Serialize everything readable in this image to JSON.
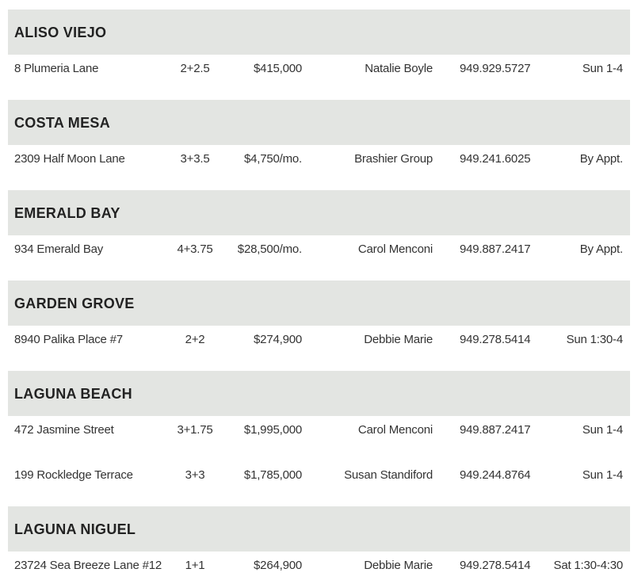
{
  "sections": [
    {
      "title": "ALISO VIEJO",
      "rows": [
        [
          "8 Plumeria Lane",
          "2+2.5",
          "$415,000",
          "Natalie Boyle",
          "949.929.5727",
          "Sun 1-4"
        ]
      ]
    },
    {
      "title": "COSTA MESA",
      "rows": [
        [
          "2309 Half Moon Lane",
          "3+3.5",
          "$4,750/mo.",
          "Brashier Group",
          "949.241.6025",
          "By Appt."
        ]
      ]
    },
    {
      "title": "EMERALD BAY",
      "rows": [
        [
          "934 Emerald Bay",
          "4+3.75",
          "$28,500/mo.",
          "Carol Menconi",
          "949.887.2417",
          "By Appt."
        ]
      ]
    },
    {
      "title": "GARDEN GROVE",
      "rows": [
        [
          "8940 Palika Place #7",
          "2+2",
          "$274,900",
          "Debbie Marie",
          "949.278.5414",
          "Sun 1:30-4"
        ]
      ]
    },
    {
      "title": "LAGUNA BEACH",
      "rows": [
        [
          "472 Jasmine Street",
          "3+1.75",
          "$1,995,000",
          "Carol Menconi",
          "949.887.2417",
          "Sun 1-4"
        ],
        [
          "199 Rockledge Terrace",
          "3+3",
          "$1,785,000",
          "Susan Standiford",
          "949.244.8764",
          "Sun 1-4"
        ]
      ]
    },
    {
      "title": "LAGUNA NIGUEL",
      "rows": [
        [
          "23724 Sea Breeze Lane #12",
          "1+1",
          "$264,900",
          "Debbie Marie",
          "949.278.5414",
          "Sat 1:30-4:30"
        ]
      ]
    }
  ]
}
